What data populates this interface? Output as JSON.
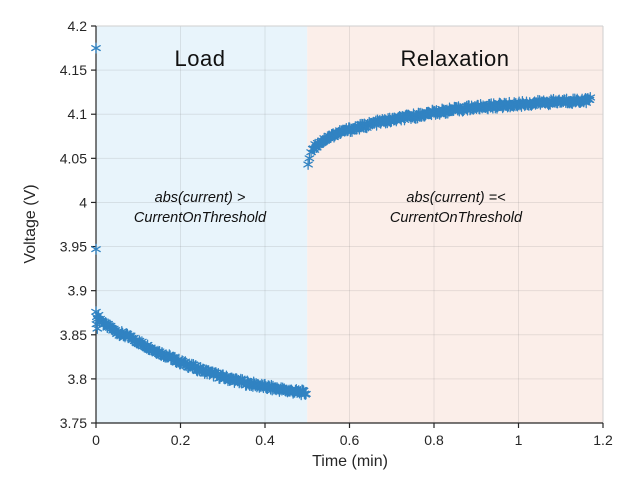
{
  "figure": {
    "xlabel": "Time (min)",
    "ylabel": "Voltage (V)",
    "regions": [
      {
        "label": "Load",
        "annotation": "abs(current) >\nCurrentOnThreshold",
        "t_start": 0,
        "t_end": 0.5,
        "color": "#e8f4fb"
      },
      {
        "label": "Relaxation",
        "annotation": "abs(current) =<\nCurrentOnThreshold",
        "t_start": 0.5,
        "t_end": 1.2,
        "color": "#fbeee9"
      }
    ]
  },
  "chart_data": {
    "type": "scatter",
    "marker": "asterisk",
    "marker_color": "#3183c2",
    "axis_color": "#262626",
    "box_color": "#cfcfcf",
    "grid_color": "rgba(110,110,110,0.15)",
    "tick_label_color": "#262626",
    "xlabel": "Time (min)",
    "ylabel": "Voltage (V)",
    "xlim": [
      0,
      1.2
    ],
    "ylim": [
      3.75,
      4.2
    ],
    "grid": true,
    "xticks": [
      0,
      0.2,
      0.4,
      0.6,
      0.8,
      1,
      1.2
    ],
    "xtick_labels": [
      "0",
      "0.2",
      "0.4",
      "0.6",
      "0.8",
      "1",
      "1.2"
    ],
    "yticks": [
      3.75,
      3.8,
      3.85,
      3.9,
      3.95,
      4,
      4.05,
      4.1,
      4.15,
      4.2
    ],
    "ytick_labels": [
      "3.75",
      "3.8",
      "3.85",
      "3.9",
      "3.95",
      "4",
      "4.05",
      "4.1",
      "4.15",
      "4.2"
    ],
    "series": [
      {
        "name": "Load",
        "outliers": [
          [
            0,
            4.175
          ],
          [
            0,
            3.947
          ],
          [
            0,
            3.876
          ],
          [
            0.002,
            3.87
          ],
          [
            0.001,
            3.862
          ],
          [
            0.003,
            3.857
          ]
        ],
        "trend": [
          [
            0.004,
            3.871
          ],
          [
            0.02,
            3.862
          ],
          [
            0.05,
            3.853
          ],
          [
            0.08,
            3.847
          ],
          [
            0.1,
            3.842
          ],
          [
            0.15,
            3.83
          ],
          [
            0.2,
            3.819
          ],
          [
            0.25,
            3.81
          ],
          [
            0.3,
            3.802
          ],
          [
            0.35,
            3.796
          ],
          [
            0.4,
            3.791
          ],
          [
            0.45,
            3.787
          ],
          [
            0.497,
            3.784
          ]
        ],
        "dense_count": 260
      },
      {
        "name": "Relaxation",
        "outliers": [
          [
            0.502,
            4.043
          ],
          [
            0.505,
            4.05
          ],
          [
            0.509,
            4.057
          ]
        ],
        "trend": [
          [
            0.513,
            4.061
          ],
          [
            0.53,
            4.068
          ],
          [
            0.55,
            4.074
          ],
          [
            0.58,
            4.08
          ],
          [
            0.62,
            4.085
          ],
          [
            0.67,
            4.091
          ],
          [
            0.72,
            4.095
          ],
          [
            0.8,
            4.102
          ],
          [
            0.88,
            4.107
          ],
          [
            0.96,
            4.11
          ],
          [
            1.05,
            4.113
          ],
          [
            1.12,
            4.115
          ],
          [
            1.17,
            4.116
          ]
        ],
        "dense_count": 340
      }
    ]
  }
}
